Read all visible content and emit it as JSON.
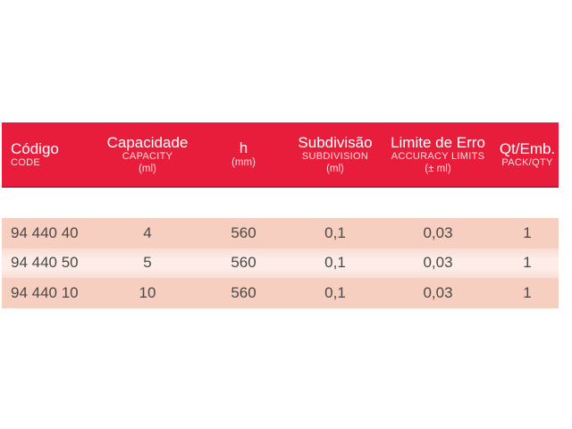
{
  "colors": {
    "header_bg": "#e81d3c",
    "header_border_bottom": "#cd1334",
    "header_text": "#ffffff",
    "header_subtext": "#ffdede",
    "row_odd_bg": "#f7cfc0",
    "row_even_bg": "#fcebe5",
    "row_text": "#4c4847",
    "page_bg": "#ffffff"
  },
  "table": {
    "columns": [
      {
        "label": "Código",
        "sublabel": "CODE",
        "unit": ""
      },
      {
        "label": "Capacidade",
        "sublabel": "CAPACITY",
        "unit": "(ml)"
      },
      {
        "label": "h",
        "sublabel": "(mm)",
        "unit": ""
      },
      {
        "label": "Subdivisão",
        "sublabel": "SUBDIVISION",
        "unit": "(ml)"
      },
      {
        "label": "Limite de Erro",
        "sublabel": "ACCURACY LIMITS",
        "unit": "(± ml)"
      },
      {
        "label": "Qt/Emb.",
        "sublabel": "PACK/QTY",
        "unit": ""
      }
    ],
    "rows": [
      [
        "94 440 40",
        "4",
        "560",
        "0,1",
        "0,03",
        "1"
      ],
      [
        "94 440 50",
        "5",
        "560",
        "0,1",
        "0,03",
        "1"
      ],
      [
        "94 440 10",
        "10",
        "560",
        "0,1",
        "0,03",
        "1"
      ]
    ]
  }
}
